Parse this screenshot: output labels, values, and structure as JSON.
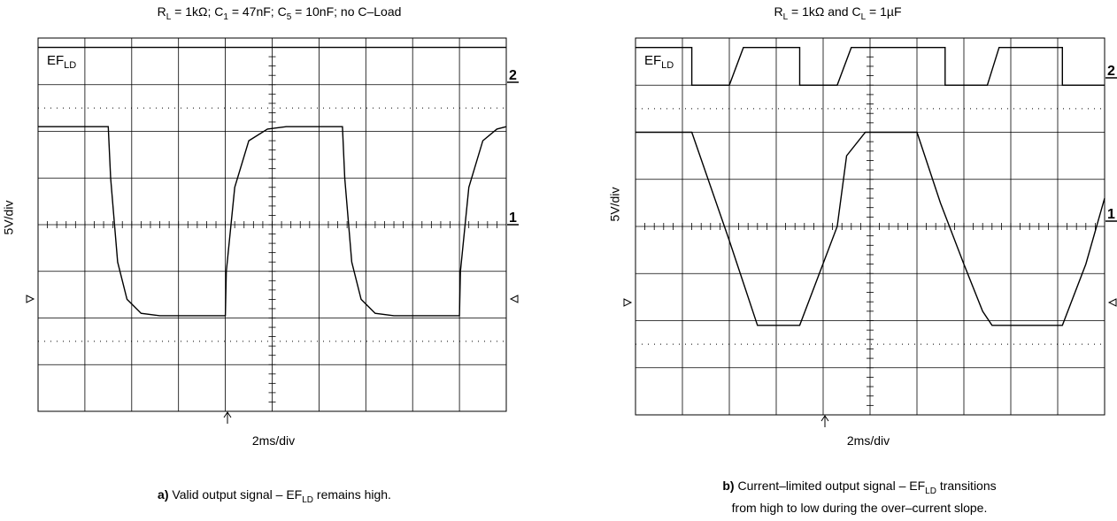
{
  "chart_data": [
    {
      "type": "line",
      "title": {
        "prefix": "R",
        "sub1": "L",
        "mid1": " = 1kΩ; C",
        "sub2": "1",
        "mid2": " = 47nF; C",
        "sub3": "5",
        "rest": " = 10nF; no C–Load"
      },
      "ylabel": "5V/div",
      "xlabel": "2ms/div",
      "trace_label": {
        "main": "EF",
        "sub": "LD"
      },
      "channel_labels": [
        "2",
        "1"
      ],
      "divisions": {
        "x": 10,
        "y": 8
      },
      "series": [
        {
          "channel": "2",
          "points": [
            [
              0,
              3.8
            ],
            [
              10,
              3.8
            ]
          ]
        },
        {
          "channel": "1",
          "points": [
            [
              0,
              2.1
            ],
            [
              1.5,
              2.1
            ],
            [
              1.55,
              1.0
            ],
            [
              1.7,
              -0.8
            ],
            [
              1.9,
              -1.6
            ],
            [
              2.2,
              -1.9
            ],
            [
              2.6,
              -1.95
            ],
            [
              4.0,
              -1.95
            ],
            [
              4.02,
              -1.0
            ],
            [
              4.2,
              0.8
            ],
            [
              4.5,
              1.8
            ],
            [
              4.9,
              2.05
            ],
            [
              5.3,
              2.1
            ],
            [
              6.5,
              2.1
            ],
            [
              6.55,
              1.0
            ],
            [
              6.7,
              -0.8
            ],
            [
              6.9,
              -1.6
            ],
            [
              7.2,
              -1.9
            ],
            [
              7.6,
              -1.95
            ],
            [
              9.0,
              -1.95
            ],
            [
              9.02,
              -1.0
            ],
            [
              9.2,
              0.8
            ],
            [
              9.5,
              1.8
            ],
            [
              9.8,
              2.05
            ],
            [
              10,
              2.1
            ]
          ]
        }
      ],
      "caption": {
        "bold": "a)",
        "text1": " Valid output signal – EF",
        "sub": "LD",
        "text2": " remains high."
      }
    },
    {
      "type": "line",
      "title": {
        "prefix": "R",
        "sub1": "L",
        "mid1": " = 1kΩ and C",
        "sub2": "L",
        "rest": " = 1µF"
      },
      "ylabel": "5V/div",
      "xlabel": "2ms/div",
      "trace_label": {
        "main": "EF",
        "sub": "LD"
      },
      "channel_labels": [
        "2",
        "1"
      ],
      "divisions": {
        "x": 10,
        "y": 8
      },
      "series": [
        {
          "channel": "2",
          "points": [
            [
              0,
              3.8
            ],
            [
              1.2,
              3.8
            ],
            [
              1.2,
              3.0
            ],
            [
              2.0,
              3.0
            ],
            [
              2.3,
              3.8
            ],
            [
              3.5,
              3.8
            ],
            [
              3.5,
              3.0
            ],
            [
              4.3,
              3.0
            ],
            [
              4.6,
              3.8
            ],
            [
              6.6,
              3.8
            ],
            [
              6.6,
              3.0
            ],
            [
              7.5,
              3.0
            ],
            [
              7.75,
              3.8
            ],
            [
              9.1,
              3.8
            ],
            [
              9.1,
              3.0
            ],
            [
              10,
              3.0
            ]
          ]
        },
        {
          "channel": "1",
          "points": [
            [
              0,
              2.0
            ],
            [
              1.2,
              2.0
            ],
            [
              2.0,
              -0.3
            ],
            [
              2.3,
              -1.2
            ],
            [
              2.6,
              -2.1
            ],
            [
              3.5,
              -2.1
            ],
            [
              4.3,
              0.0
            ],
            [
              4.5,
              1.5
            ],
            [
              4.9,
              2.0
            ],
            [
              6.0,
              2.0
            ],
            [
              6.5,
              0.5
            ],
            [
              7.0,
              -0.8
            ],
            [
              7.4,
              -1.8
            ],
            [
              7.6,
              -2.1
            ],
            [
              9.1,
              -2.1
            ],
            [
              9.6,
              -0.8
            ],
            [
              10,
              0.6
            ]
          ]
        }
      ],
      "caption": {
        "bold": "b)",
        "text1": " Current–limited output signal – EF",
        "sub": "LD",
        "text2": " transitions",
        "line2": "from high to low during the over–current slope."
      }
    }
  ]
}
